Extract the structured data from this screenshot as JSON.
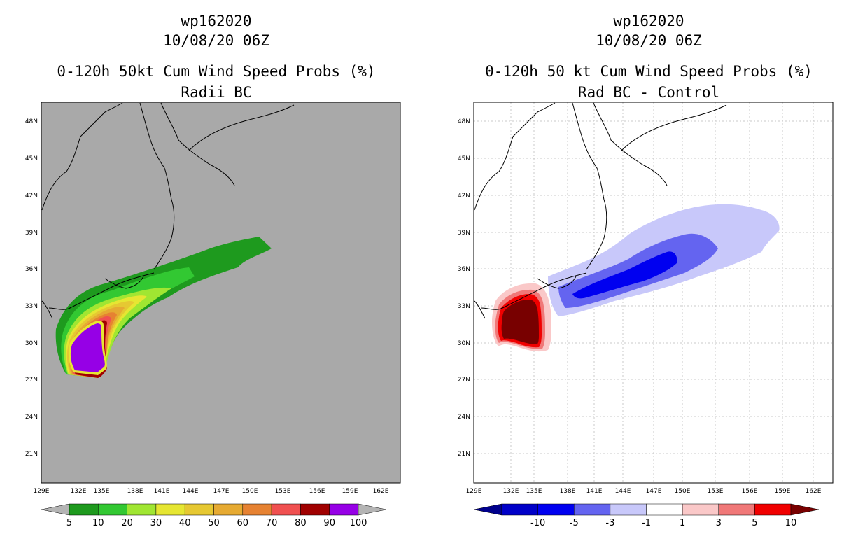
{
  "left": {
    "storm_id": "wp162020",
    "datetime": "10/08/20 06Z",
    "product": "0-120h 50kt Cum Wind Speed Probs (%)",
    "subtitle": "Radii BC",
    "colorbar": {
      "labels": [
        "5",
        "10",
        "20",
        "30",
        "40",
        "50",
        "60",
        "70",
        "80",
        "90",
        "100"
      ],
      "colors": [
        "#1e9a1e",
        "#32c832",
        "#a0e632",
        "#e6e632",
        "#e6c832",
        "#e6aa32",
        "#e68232",
        "#f05050",
        "#a00000",
        "#9600e6"
      ],
      "under_color": "#b4b4b4",
      "over_color": "#b4b4b4"
    },
    "background_color": "#a9a9a9"
  },
  "right": {
    "storm_id": "wp162020",
    "datetime": "10/08/20 06Z",
    "product": "0-120h 50 kt Cum Wind Speed Probs (%)",
    "subtitle": "Rad BC - Control",
    "colorbar": {
      "labels": [
        "-10",
        "-5",
        "-3",
        "-1",
        "1",
        "3",
        "5",
        "10"
      ],
      "colors": [
        "#0000c8",
        "#0000f0",
        "#6464f0",
        "#c8c8fa",
        "#ffffff",
        "#fac8c8",
        "#f07878",
        "#f00000"
      ],
      "under_color": "#00008c",
      "over_color": "#780000"
    },
    "background_color": "#ffffff"
  },
  "axes": {
    "x_ticks": [
      "129E",
      "132E",
      "135E",
      "138E",
      "141E",
      "144E",
      "147E",
      "150E",
      "153E",
      "156E",
      "159E",
      "162E"
    ],
    "y_ticks": [
      "48N",
      "45N",
      "42N",
      "39N",
      "36N",
      "33N",
      "30N",
      "27N",
      "24N",
      "21N"
    ]
  }
}
